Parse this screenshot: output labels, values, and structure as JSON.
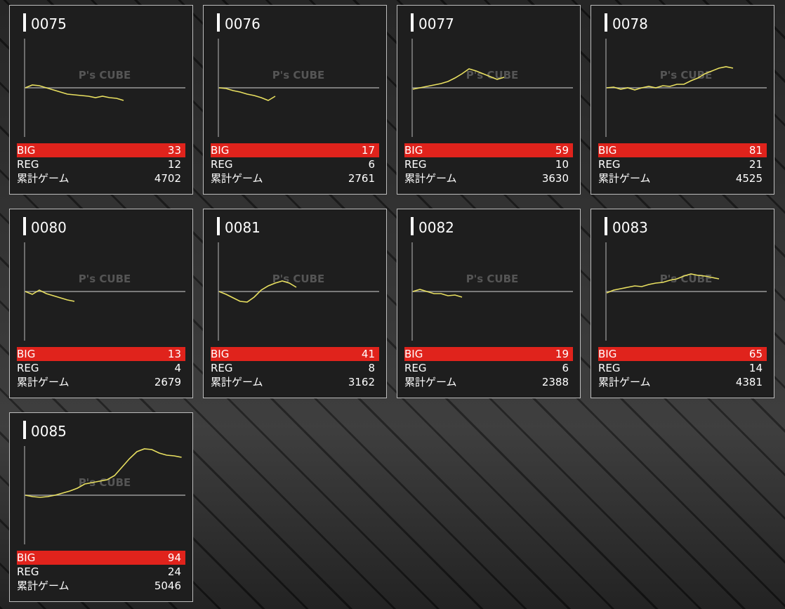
{
  "labels": {
    "big": "BIG",
    "reg": "REG",
    "games": "累計ゲーム"
  },
  "watermark": "P's CUBE",
  "cards": [
    {
      "id": "0075",
      "big": 33,
      "reg": 12,
      "games": 4702,
      "graph": [
        0,
        4,
        3,
        0,
        -3,
        -6,
        -9,
        -10,
        -11,
        -12,
        -14,
        -12,
        -14,
        -15,
        -18
      ]
    },
    {
      "id": "0076",
      "big": 17,
      "reg": 6,
      "games": 2761,
      "graph": [
        0,
        -1,
        -4,
        -6,
        -9,
        -11,
        -14,
        -18,
        -12
      ]
    },
    {
      "id": "0077",
      "big": 59,
      "reg": 10,
      "games": 3630,
      "graph": [
        -2,
        0,
        2,
        4,
        6,
        9,
        14,
        20,
        27,
        24,
        20,
        16,
        12,
        15
      ]
    },
    {
      "id": "0078",
      "big": 81,
      "reg": 21,
      "games": 4525,
      "graph": [
        0,
        1,
        -2,
        0,
        -3,
        0,
        2,
        0,
        3,
        2,
        5,
        5,
        10,
        14,
        20,
        24,
        28,
        30,
        28
      ]
    },
    {
      "id": "0080",
      "big": 13,
      "reg": 4,
      "games": 2679,
      "graph": [
        0,
        -4,
        2,
        -3,
        -6,
        -9,
        -12,
        -14
      ]
    },
    {
      "id": "0081",
      "big": 41,
      "reg": 8,
      "games": 3162,
      "graph": [
        0,
        -4,
        -9,
        -14,
        -15,
        -8,
        2,
        8,
        12,
        15,
        12,
        6
      ]
    },
    {
      "id": "0082",
      "big": 19,
      "reg": 6,
      "games": 2388,
      "graph": [
        0,
        3,
        0,
        -3,
        -3,
        -6,
        -5,
        -8
      ]
    },
    {
      "id": "0083",
      "big": 65,
      "reg": 14,
      "games": 4381,
      "graph": [
        -2,
        2,
        4,
        6,
        8,
        7,
        10,
        12,
        13,
        16,
        18,
        22,
        25,
        23,
        22,
        20,
        18
      ]
    },
    {
      "id": "0085",
      "big": 94,
      "reg": 24,
      "games": 5046,
      "graph": [
        0,
        -2,
        -3,
        -2,
        0,
        3,
        6,
        10,
        16,
        18,
        20,
        22,
        28,
        40,
        52,
        62,
        66,
        65,
        60,
        57,
        56,
        54
      ]
    }
  ]
}
